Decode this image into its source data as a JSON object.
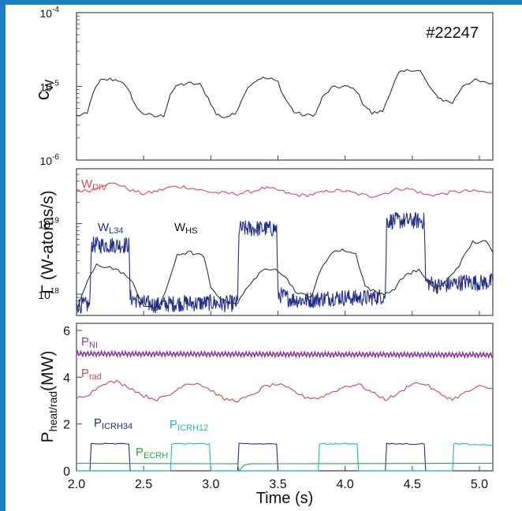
{
  "colors": {
    "background_border": "#1a7fc1",
    "w_div": "#e0474f",
    "w_l34": "#22308a",
    "w_hs": "#333333",
    "p_ni": "#8a3c9c",
    "p_rad": "#c94a4a",
    "p_icrh34": "#22308a",
    "p_icrh12": "#1eb6c8",
    "p_ecrh": "#2aa84a",
    "c_w": "#333333"
  },
  "shot_label": "#22247",
  "xlabel": "Time (s)",
  "chart_data": [
    {
      "type": "line",
      "id": "cw",
      "ylabel_main": "c",
      "ylabel_sub": "W",
      "yscale": "log",
      "ylim": [
        1e-06,
        0.0001
      ],
      "yticks": [
        {
          "base": "10",
          "exp": "-4"
        },
        {
          "base": "10",
          "exp": "-5"
        },
        {
          "base": "10",
          "exp": "-6"
        }
      ],
      "xlim": [
        2.0,
        5.1
      ],
      "series": [
        {
          "color_key": "c_w",
          "x": [
            2.0,
            2.08,
            2.12,
            2.18,
            2.25,
            2.33,
            2.4,
            2.45,
            2.5,
            2.58,
            2.65,
            2.7,
            2.76,
            2.85,
            2.92,
            2.98,
            3.04,
            3.1,
            3.18,
            3.25,
            3.3,
            3.37,
            3.45,
            3.5,
            3.55,
            3.62,
            3.7,
            3.78,
            3.83,
            3.9,
            4.0,
            4.08,
            4.13,
            4.2,
            4.28,
            4.33,
            4.4,
            4.5,
            4.56,
            4.6,
            4.66,
            4.73,
            4.8,
            4.88,
            4.97,
            5.05,
            5.1
          ],
          "y": [
            4e-06,
            4.2e-06,
            8e-06,
            1.2e-05,
            1.25e-05,
            1.2e-05,
            8e-06,
            5e-06,
            4.3e-06,
            3.9e-06,
            4e-06,
            8e-06,
            1.05e-05,
            1.1e-05,
            1.05e-05,
            7e-06,
            4.2e-06,
            3.8e-06,
            4.2e-06,
            8e-06,
            1.1e-05,
            1.3e-05,
            1.25e-05,
            1.15e-05,
            7e-06,
            4.5e-06,
            4e-06,
            4.2e-06,
            7e-06,
            9.5e-06,
            1e-05,
            9e-06,
            6e-06,
            4.3e-06,
            4.6e-06,
            8e-06,
            1.5e-05,
            1.7e-05,
            1.6e-05,
            1.2e-05,
            8e-06,
            6.5e-06,
            6e-06,
            1.05e-05,
            1.2e-05,
            1.1e-05,
            1.1e-05
          ]
        }
      ]
    },
    {
      "type": "line",
      "id": "gamma",
      "ylabel": "Γ (W-atoms/s)",
      "yscale": "log",
      "ylim": [
        5e+17,
        6e+19
      ],
      "yticks": [
        {
          "base": "10",
          "exp": "19"
        },
        {
          "base": "10",
          "exp": "18"
        }
      ],
      "xlim": [
        2.0,
        5.1
      ],
      "series": [
        {
          "name": "W",
          "sub": "DIV",
          "color_key": "w_div",
          "x": [
            2.0,
            2.1,
            2.2,
            2.3,
            2.4,
            2.5,
            2.6,
            2.7,
            2.8,
            2.9,
            3.0,
            3.1,
            3.2,
            3.3,
            3.4,
            3.5,
            3.6,
            3.7,
            3.8,
            3.9,
            4.0,
            4.1,
            4.2,
            4.3,
            4.4,
            4.5,
            4.6,
            4.7,
            4.8,
            4.9,
            5.0,
            5.1
          ],
          "y": [
            2.9e+19,
            2.95e+19,
            3.6e+19,
            3.7e+19,
            3e+19,
            2.65e+19,
            2.9e+19,
            3.3e+19,
            3.35e+19,
            3.05e+19,
            2.8e+19,
            2.7e+19,
            2.65e+19,
            2.85e+19,
            3.2e+19,
            3e+19,
            2.6e+19,
            2.5e+19,
            2.7e+19,
            2.95e+19,
            2.9e+19,
            2.6e+19,
            2.45e+19,
            2.7e+19,
            3.15e+19,
            3.05e+19,
            2.55e+19,
            2.6e+19,
            2.8e+19,
            2.9e+19,
            2.85e+19,
            2.7e+19
          ]
        },
        {
          "name": "W",
          "sub": "L34",
          "color_key": "w_l34",
          "x": [
            2.0,
            2.1,
            2.11,
            2.39,
            2.4,
            2.5,
            2.6,
            2.7,
            2.8,
            2.9,
            3.0,
            3.1,
            3.2,
            3.21,
            3.49,
            3.5,
            3.6,
            3.7,
            3.8,
            3.9,
            4.0,
            4.1,
            4.2,
            4.3,
            4.31,
            4.59,
            4.6,
            4.7,
            4.8,
            4.9,
            5.0,
            5.1
          ],
          "y": [
            7e+17,
            7e+17,
            5e+18,
            5e+18,
            9e+17,
            7.5e+17,
            7e+17,
            7.3e+17,
            7.5e+17,
            7.4e+17,
            7.6e+17,
            7.3e+17,
            7.5e+17,
            8.5e+18,
            8.5e+18,
            1e+18,
            8.5e+17,
            8.2e+17,
            8.5e+17,
            9e+17,
            9e+17,
            8.8e+17,
            9e+17,
            9.5e+17,
            1.1e+19,
            1.1e+19,
            1.5e+18,
            1.3e+18,
            1.4e+18,
            1.5e+18,
            1.45e+18,
            1.5e+18
          ]
        },
        {
          "name": "W",
          "sub": "HS",
          "color_key": "w_hs",
          "x": [
            2.0,
            2.08,
            2.15,
            2.25,
            2.35,
            2.42,
            2.5,
            2.6,
            2.68,
            2.75,
            2.85,
            2.95,
            3.0,
            3.1,
            3.2,
            3.3,
            3.4,
            3.48,
            3.55,
            3.65,
            3.75,
            3.82,
            3.9,
            4.0,
            4.08,
            4.15,
            4.25,
            4.35,
            4.45,
            4.55,
            4.6,
            4.68,
            4.75,
            4.85,
            4.95,
            5.05,
            5.1
          ],
          "y": [
            6e+17,
            1.5e+18,
            2.6e+18,
            2.4e+18,
            2e+18,
            1.4e+18,
            7e+17,
            6e+17,
            1.3e+18,
            3.7e+18,
            3.9e+18,
            3.4e+18,
            1.2e+18,
            8e+17,
            7.5e+17,
            1.5e+18,
            2.2e+18,
            2.4e+18,
            1.8e+18,
            1e+18,
            9.5e+17,
            2.2e+18,
            4e+18,
            4.2e+18,
            3.7e+18,
            1.3e+18,
            1e+18,
            1.1e+18,
            1.9e+18,
            2.2e+18,
            1.6e+18,
            1.2e+18,
            1.5e+18,
            2.6e+18,
            5.5e+18,
            5.5e+18,
            3.9e+18
          ]
        }
      ]
    },
    {
      "type": "line",
      "id": "power",
      "ylabel_main": "P",
      "ylabel_sub": "heat/rad",
      "ylabel_unit": "(MW)",
      "yscale": "linear",
      "ylim": [
        0,
        6.3
      ],
      "yticks": [
        6,
        4,
        2,
        0
      ],
      "xlim": [
        2.0,
        5.1
      ],
      "xticks": [
        2.0,
        2.5,
        3.0,
        3.5,
        4.0,
        4.5,
        5.0
      ],
      "series": [
        {
          "name": "P",
          "sub": "NI",
          "color_key": "p_ni",
          "x": [
            2.0,
            5.1
          ],
          "y": [
            5.0,
            4.95
          ]
        },
        {
          "name": "P",
          "sub": "rad",
          "color_key": "p_rad",
          "x": [
            2.0,
            2.1,
            2.2,
            2.3,
            2.4,
            2.5,
            2.6,
            2.7,
            2.8,
            2.9,
            3.0,
            3.1,
            3.2,
            3.3,
            3.4,
            3.5,
            3.6,
            3.7,
            3.8,
            3.9,
            4.0,
            4.1,
            4.2,
            4.3,
            4.4,
            4.5,
            4.6,
            4.7,
            4.8,
            4.9,
            5.0,
            5.1
          ],
          "y": [
            3.1,
            3.3,
            3.75,
            3.8,
            3.55,
            3.2,
            3.05,
            3.25,
            3.7,
            3.75,
            3.45,
            3.05,
            3.0,
            3.2,
            3.6,
            3.7,
            3.45,
            3.15,
            3.1,
            3.35,
            3.6,
            3.7,
            3.35,
            3.05,
            3.3,
            3.75,
            3.7,
            3.3,
            3.05,
            3.35,
            3.6,
            3.5
          ]
        },
        {
          "name": "P",
          "sub": "ICRH34",
          "color_key": "p_icrh34",
          "x": [
            2.0,
            2.1,
            2.11,
            2.39,
            2.4,
            3.2,
            3.21,
            3.49,
            3.5,
            4.3,
            4.31,
            4.59,
            4.6,
            5.1
          ],
          "y": [
            0,
            0,
            1.15,
            1.15,
            0,
            0,
            1.15,
            1.15,
            0,
            0,
            1.15,
            1.15,
            0,
            0
          ]
        },
        {
          "name": "P",
          "sub": "ICRH12",
          "color_key": "p_icrh12",
          "x": [
            2.0,
            2.7,
            2.71,
            2.99,
            3.0,
            3.8,
            3.81,
            4.09,
            4.1,
            4.8,
            4.81,
            5.1
          ],
          "y": [
            0,
            0,
            1.15,
            1.15,
            0,
            0,
            1.15,
            1.15,
            0,
            0,
            1.15,
            1.1
          ]
        },
        {
          "name": "P",
          "sub": "ECRH",
          "color_key": "p_ecrh",
          "x": [
            2.0,
            3.2,
            3.21,
            3.25,
            3.3,
            5.1
          ],
          "y": [
            0.32,
            0.3,
            0,
            0.25,
            0.3,
            0.32
          ]
        }
      ]
    }
  ]
}
